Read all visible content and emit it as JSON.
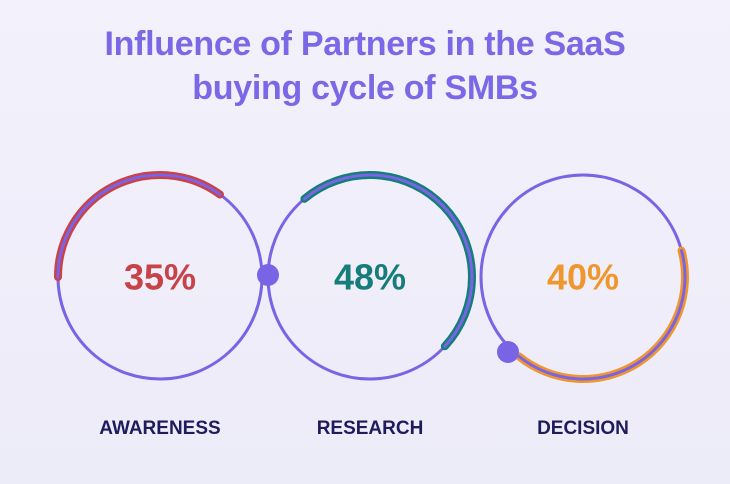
{
  "title_line1": "Influence of Partners in the SaaS",
  "title_line2": "buying cycle of SMBs",
  "colors": {
    "title": "#7b68e6",
    "ring": "#7a64e6",
    "label": "#1f1b5c"
  },
  "chart_data": {
    "type": "radial-progress",
    "title": "Influence of Partners in the SaaS buying cycle of SMBs",
    "unit": "%",
    "series": [
      {
        "name": "AWARENESS",
        "value": 35,
        "label": "35%",
        "color": "#c8424a"
      },
      {
        "name": "RESEARCH",
        "value": 48,
        "label": "48%",
        "color": "#167d7a"
      },
      {
        "name": "DECISION",
        "value": 40,
        "label": "40%",
        "color": "#f0962e"
      }
    ]
  }
}
